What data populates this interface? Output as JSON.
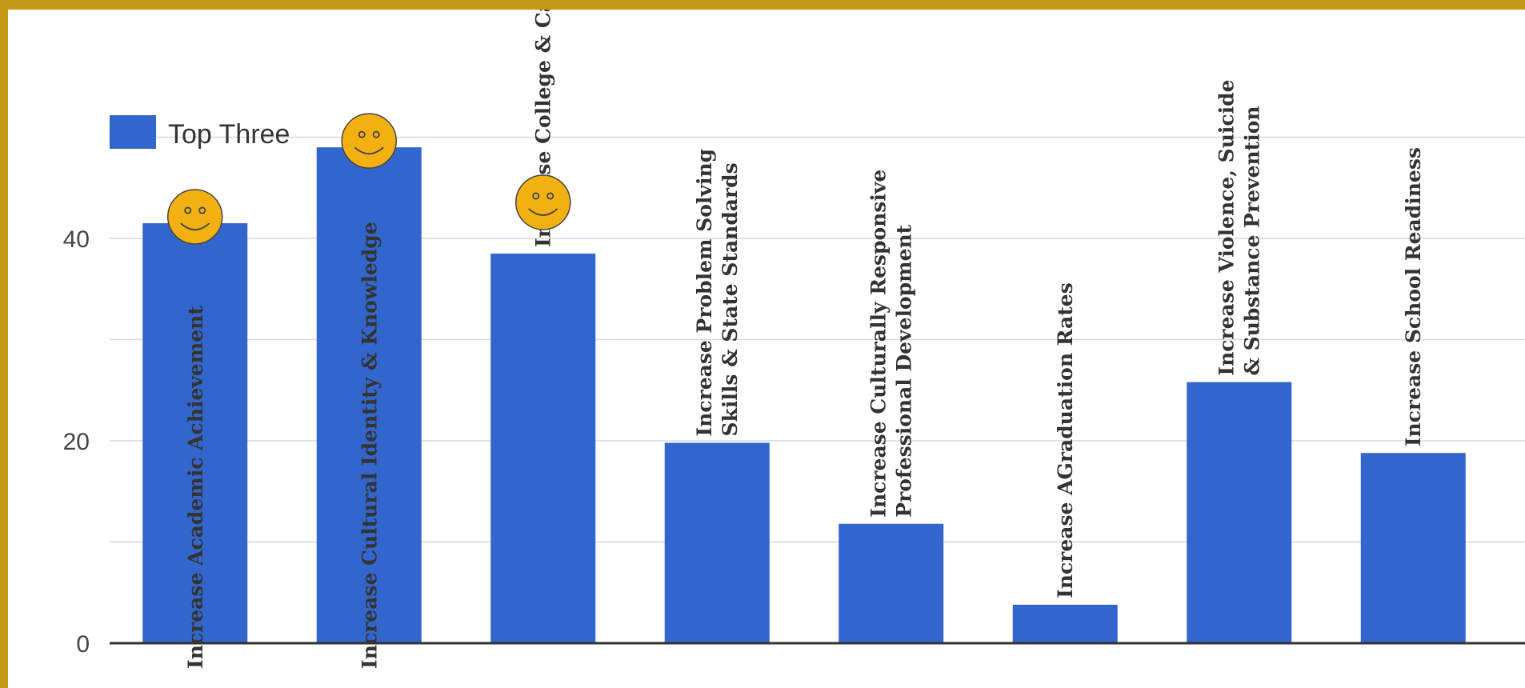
{
  "chart_data": {
    "type": "bar",
    "categories": [
      [
        "Increase Academic Achievement"
      ],
      [
        "Increase Cultural Identity & Knowledge"
      ],
      [
        "Increase College & Career Readiness"
      ],
      [
        "Increase Problem Solving",
        "Skills & State Standards"
      ],
      [
        "Increase Culturally  Responsive",
        "Professional Development"
      ],
      [
        "Increase AGraduation Rates"
      ],
      [
        "Increase Violence, Suicide",
        "& Substance Prevention"
      ],
      [
        "Increase School Readiness"
      ]
    ],
    "series": [
      {
        "name": "Top Three",
        "values": [
          41.5,
          49,
          38.5,
          19.8,
          11.8,
          3.8,
          25.8,
          18.8
        ]
      }
    ],
    "yticks": [
      0,
      20,
      40
    ],
    "ylim": [
      0,
      52
    ],
    "grid": true,
    "legend": "top-left",
    "top_three_marked": [
      0,
      1,
      2
    ],
    "colors": {
      "bar": "#3366cc",
      "marker": "#f3b111",
      "frame": "#c59a17"
    }
  }
}
